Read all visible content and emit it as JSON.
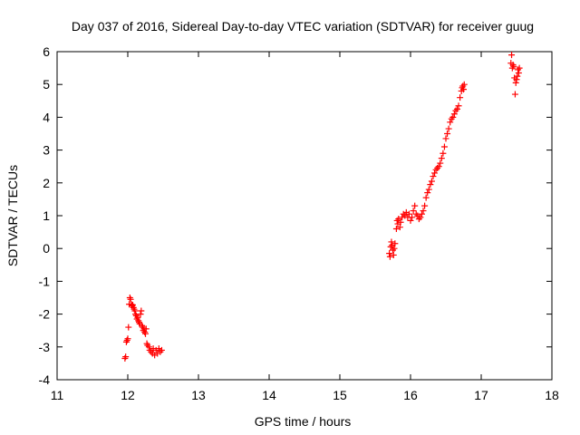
{
  "chart_data": {
    "type": "scatter",
    "title": "Day 037 of 2016, Sidereal Day-to-day VTEC variation (SDTVAR) for receiver guug",
    "xlabel": "GPS time / hours",
    "ylabel": "SDTVAR / TECUs",
    "xlim": [
      11,
      18
    ],
    "ylim": [
      -4,
      6
    ],
    "x_ticks": [
      "11",
      "12",
      "13",
      "14",
      "15",
      "16",
      "17",
      "18"
    ],
    "y_ticks": [
      "-4",
      "-3",
      "-2",
      "-1",
      "0",
      "1",
      "2",
      "3",
      "4",
      "5",
      "6"
    ],
    "grid": false,
    "legend": "none",
    "marker": "plus",
    "color": "#ff0000",
    "series": [
      {
        "name": "SDTVAR",
        "points": [
          [
            11.96,
            -3.35
          ],
          [
            11.97,
            -3.3
          ],
          [
            11.98,
            -2.85
          ],
          [
            11.99,
            -2.8
          ],
          [
            12.0,
            -2.75
          ],
          [
            12.01,
            -2.4
          ],
          [
            12.02,
            -1.7
          ],
          [
            12.03,
            -1.5
          ],
          [
            12.04,
            -1.55
          ],
          [
            12.05,
            -1.7
          ],
          [
            12.06,
            -1.75
          ],
          [
            12.07,
            -1.72
          ],
          [
            12.08,
            -1.8
          ],
          [
            12.09,
            -1.85
          ],
          [
            12.1,
            -1.9
          ],
          [
            12.11,
            -2.0
          ],
          [
            12.12,
            -2.05
          ],
          [
            12.13,
            -2.15
          ],
          [
            12.14,
            -2.1
          ],
          [
            12.15,
            -2.2
          ],
          [
            12.16,
            -2.25
          ],
          [
            12.17,
            -2.3
          ],
          [
            12.18,
            -2.0
          ],
          [
            12.19,
            -1.9
          ],
          [
            12.2,
            -2.35
          ],
          [
            12.21,
            -2.4
          ],
          [
            12.22,
            -2.5
          ],
          [
            12.23,
            -2.45
          ],
          [
            12.24,
            -2.55
          ],
          [
            12.25,
            -2.6
          ],
          [
            12.26,
            -2.45
          ],
          [
            12.27,
            -2.9
          ],
          [
            12.28,
            -2.95
          ],
          [
            12.3,
            -3.0
          ],
          [
            12.31,
            -3.1
          ],
          [
            12.33,
            -3.15
          ],
          [
            12.35,
            -3.2
          ],
          [
            12.36,
            -3.05
          ],
          [
            12.38,
            -3.25
          ],
          [
            12.4,
            -3.1
          ],
          [
            12.42,
            -3.2
          ],
          [
            12.44,
            -3.05
          ],
          [
            12.46,
            -3.15
          ],
          [
            12.48,
            -3.1
          ],
          [
            15.7,
            -0.15
          ],
          [
            15.71,
            -0.25
          ],
          [
            15.72,
            0.05
          ],
          [
            15.73,
            0.2
          ],
          [
            15.74,
            0.1
          ],
          [
            15.75,
            -0.05
          ],
          [
            15.76,
            -0.2
          ],
          [
            15.77,
            0.0
          ],
          [
            15.78,
            0.15
          ],
          [
            15.8,
            0.6
          ],
          [
            15.81,
            0.85
          ],
          [
            15.82,
            0.75
          ],
          [
            15.83,
            0.9
          ],
          [
            15.85,
            0.65
          ],
          [
            15.86,
            0.8
          ],
          [
            15.88,
            0.95
          ],
          [
            15.9,
            1.05
          ],
          [
            15.92,
            1.0
          ],
          [
            15.94,
            1.1
          ],
          [
            15.96,
            0.95
          ],
          [
            15.98,
            1.05
          ],
          [
            16.0,
            0.85
          ],
          [
            16.02,
            0.95
          ],
          [
            16.04,
            1.15
          ],
          [
            16.06,
            1.3
          ],
          [
            16.08,
            1.05
          ],
          [
            16.1,
            1.0
          ],
          [
            16.12,
            0.9
          ],
          [
            16.14,
            0.95
          ],
          [
            16.16,
            1.05
          ],
          [
            16.18,
            1.15
          ],
          [
            16.2,
            1.3
          ],
          [
            16.22,
            1.55
          ],
          [
            16.24,
            1.7
          ],
          [
            16.26,
            1.8
          ],
          [
            16.28,
            1.95
          ],
          [
            16.3,
            2.05
          ],
          [
            16.32,
            2.2
          ],
          [
            16.34,
            2.3
          ],
          [
            16.36,
            2.4
          ],
          [
            16.38,
            2.45
          ],
          [
            16.4,
            2.5
          ],
          [
            16.42,
            2.6
          ],
          [
            16.44,
            2.75
          ],
          [
            16.46,
            2.9
          ],
          [
            16.48,
            3.1
          ],
          [
            16.5,
            3.35
          ],
          [
            16.52,
            3.5
          ],
          [
            16.54,
            3.65
          ],
          [
            16.56,
            3.85
          ],
          [
            16.58,
            3.95
          ],
          [
            16.6,
            4.0
          ],
          [
            16.62,
            4.1
          ],
          [
            16.64,
            4.2
          ],
          [
            16.66,
            4.25
          ],
          [
            16.68,
            4.35
          ],
          [
            16.7,
            4.6
          ],
          [
            16.72,
            4.8
          ],
          [
            16.73,
            4.9
          ],
          [
            16.74,
            4.95
          ],
          [
            16.75,
            4.85
          ],
          [
            16.76,
            5.0
          ],
          [
            17.42,
            5.65
          ],
          [
            17.43,
            5.9
          ],
          [
            17.44,
            5.5
          ],
          [
            17.45,
            5.6
          ],
          [
            17.46,
            5.55
          ],
          [
            17.47,
            5.2
          ],
          [
            17.48,
            4.7
          ],
          [
            17.49,
            5.05
          ],
          [
            17.5,
            5.15
          ],
          [
            17.51,
            5.25
          ],
          [
            17.52,
            5.45
          ],
          [
            17.53,
            5.35
          ],
          [
            17.54,
            5.5
          ]
        ]
      }
    ]
  }
}
